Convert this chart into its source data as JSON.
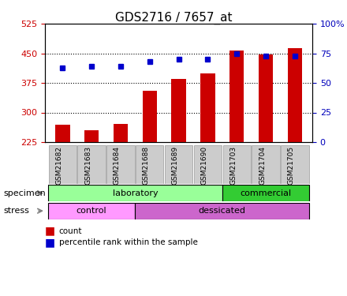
{
  "title": "GDS2716 / 7657_at",
  "samples": [
    "GSM21682",
    "GSM21683",
    "GSM21684",
    "GSM21688",
    "GSM21689",
    "GSM21690",
    "GSM21703",
    "GSM21704",
    "GSM21705"
  ],
  "counts": [
    270,
    255,
    272,
    355,
    385,
    400,
    457,
    447,
    463
  ],
  "percentile_ranks": [
    63,
    64,
    64,
    68,
    70,
    70,
    75,
    73,
    73
  ],
  "y_min": 225,
  "y_max": 525,
  "y_ticks": [
    225,
    300,
    375,
    450,
    525
  ],
  "y_right_ticks": [
    0,
    25,
    50,
    75,
    100
  ],
  "bar_color": "#cc0000",
  "dot_color": "#0000cc",
  "specimen_groups": [
    {
      "label": "laboratory",
      "start": 0,
      "end": 6,
      "color": "#99ff99"
    },
    {
      "label": "commercial",
      "start": 6,
      "end": 9,
      "color": "#33cc33"
    }
  ],
  "stress_groups": [
    {
      "label": "control",
      "start": 0,
      "end": 3,
      "color": "#ff99ff"
    },
    {
      "label": "dessicated",
      "start": 3,
      "end": 9,
      "color": "#cc66cc"
    }
  ],
  "legend_items": [
    {
      "label": "count",
      "color": "#cc0000",
      "marker": "s"
    },
    {
      "label": "percentile rank within the sample",
      "color": "#0000cc",
      "marker": "s"
    }
  ],
  "background_color": "#ffffff",
  "plot_bg_color": "#ffffff",
  "grid_color": "#000000",
  "tick_label_color_left": "#cc0000",
  "tick_label_color_right": "#0000bb"
}
